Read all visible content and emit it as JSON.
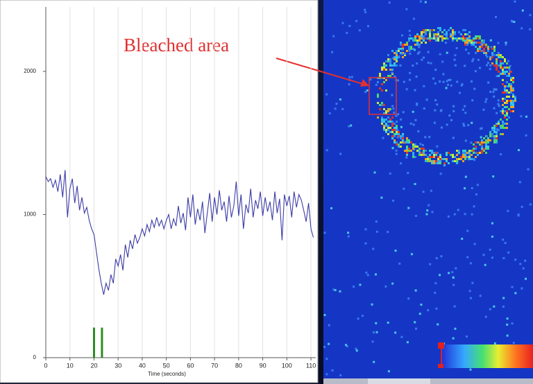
{
  "chart_data": {
    "type": "line",
    "x_label": "Time (seconds)",
    "x": [
      0,
      1,
      2,
      3,
      4,
      5,
      6,
      7,
      8,
      9,
      10,
      11,
      12,
      13,
      14,
      15,
      16,
      17,
      18,
      19,
      20,
      21,
      22,
      23,
      24,
      25,
      26,
      27,
      28,
      29,
      30,
      31,
      32,
      33,
      34,
      35,
      36,
      37,
      38,
      39,
      40,
      41,
      42,
      43,
      44,
      45,
      46,
      47,
      48,
      49,
      50,
      51,
      52,
      53,
      54,
      55,
      56,
      57,
      58,
      59,
      60,
      61,
      62,
      63,
      64,
      65,
      66,
      67,
      68,
      69,
      70,
      71,
      72,
      73,
      74,
      75,
      76,
      77,
      78,
      79,
      80,
      81,
      82,
      83,
      84,
      85,
      86,
      87,
      88,
      89,
      90,
      91,
      92,
      93,
      94,
      95,
      96,
      97,
      98,
      99,
      100,
      101,
      102,
      103,
      104,
      105,
      106,
      107,
      108,
      109,
      110,
      111
    ],
    "values": [
      1265,
      1230,
      1250,
      1190,
      1240,
      1160,
      1280,
      1120,
      1310,
      980,
      1180,
      1250,
      1080,
      1200,
      1030,
      1120,
      1010,
      1050,
      960,
      900,
      860,
      740,
      620,
      520,
      440,
      520,
      470,
      580,
      520,
      690,
      640,
      720,
      610,
      790,
      700,
      820,
      760,
      860,
      800,
      840,
      900,
      850,
      930,
      880,
      960,
      910,
      980,
      920,
      960,
      900,
      960,
      1000,
      900,
      970,
      920,
      1060,
      940,
      1010,
      890,
      1120,
      980,
      1140,
      930,
      1040,
      960,
      1090,
      870,
      1010,
      1150,
      950,
      1120,
      1000,
      1170,
      1030,
      1090,
      950,
      1130,
      980,
      1060,
      1230,
      990,
      1140,
      900,
      1070,
      1010,
      1180,
      980,
      1100,
      1040,
      1160,
      990,
      1120,
      1020,
      1090,
      960,
      1160,
      1010,
      1110,
      820,
      1140,
      1060,
      1130,
      980,
      1160,
      1050,
      1140,
      1100,
      1030,
      950,
      1080,
      900,
      840
    ],
    "color": "#3b3ba6",
    "xlim": [
      0,
      112
    ],
    "xticks": [
      0,
      10,
      20,
      30,
      40,
      50,
      60,
      70,
      80,
      90,
      100,
      110
    ],
    "ylim": [
      0,
      2450
    ],
    "yticks": [
      0,
      1000,
      2000
    ],
    "grid": "x",
    "bleach_markers": {
      "x": [
        20,
        23.3
      ],
      "values": [
        210,
        210
      ],
      "color": "#2e8b22"
    }
  },
  "annotation": "Bleached area"
}
